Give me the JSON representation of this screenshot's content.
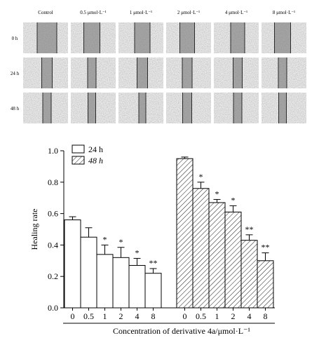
{
  "micrographs": {
    "columns": [
      "Control",
      "0.5 μmol·L⁻¹",
      "1 μmol·L⁻¹",
      "2 μmol·L⁻¹",
      "4 μmol·L⁻¹",
      "8 μmol·L⁻¹"
    ],
    "rows": [
      "0 h",
      "24 h",
      "48 h"
    ]
  },
  "chart_data": {
    "type": "bar",
    "xlabel": "Concentration of derivative 4a/μmol·L⁻¹",
    "ylabel": "Healing rate",
    "ylim": [
      0,
      1.0
    ],
    "yticks": [
      "0.0",
      "0.2",
      "0.4",
      "0.6",
      "0.8",
      "1.0"
    ],
    "categories": [
      "0",
      "0.5",
      "1",
      "2",
      "4",
      "8"
    ],
    "legend_position": "top-left",
    "grid": false,
    "series": [
      {
        "name": "24 h",
        "fill": "plain",
        "values": [
          0.56,
          0.45,
          0.34,
          0.32,
          0.27,
          0.22
        ],
        "errors": [
          0.02,
          0.06,
          0.06,
          0.065,
          0.045,
          0.03
        ],
        "significance": [
          "",
          "",
          "*",
          "*",
          "*",
          "**"
        ]
      },
      {
        "name": "48 h",
        "fill": "hatched",
        "values": [
          0.95,
          0.76,
          0.67,
          0.61,
          0.43,
          0.3
        ],
        "errors": [
          0.01,
          0.04,
          0.02,
          0.04,
          0.035,
          0.05
        ],
        "significance": [
          "",
          "*",
          "*",
          "*",
          "**",
          "**"
        ]
      }
    ]
  }
}
